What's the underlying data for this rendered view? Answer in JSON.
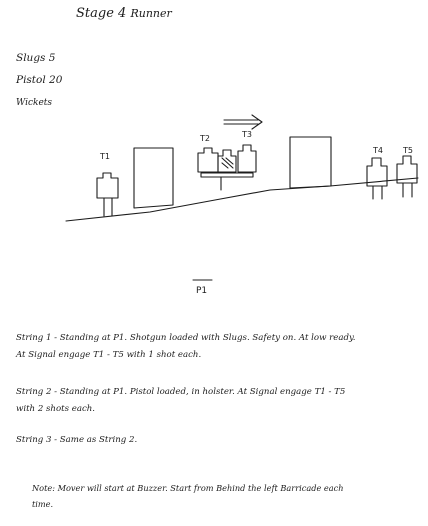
{
  "document": {
    "title": "Stage 4",
    "title_sub": "Runner",
    "ammo": [
      "Slugs 5",
      "Pistol 20",
      "Wickets"
    ]
  },
  "diagram": {
    "target_labels": [
      "T1",
      "T2",
      "T3",
      "T4",
      "T5"
    ],
    "start_position": "P1",
    "arrow_direction": "right"
  },
  "strings": [
    "String 1 - Standing at P1. Shotgun loaded with Slugs. Safety on. At low ready. At Signal engage T1 - T5 with 1 shot each.",
    "String 2 - Standing at P1. Pistol loaded, in holster. At Signal engage T1 - T5 with 2 shots each.",
    "String 3 - Same as String 2."
  ],
  "note": "Note: Mover will start at Buzzer. Start from Behind the left Barricade each time.",
  "colors": {
    "ink": "#1c1c1c",
    "paper": "#ffffff"
  }
}
